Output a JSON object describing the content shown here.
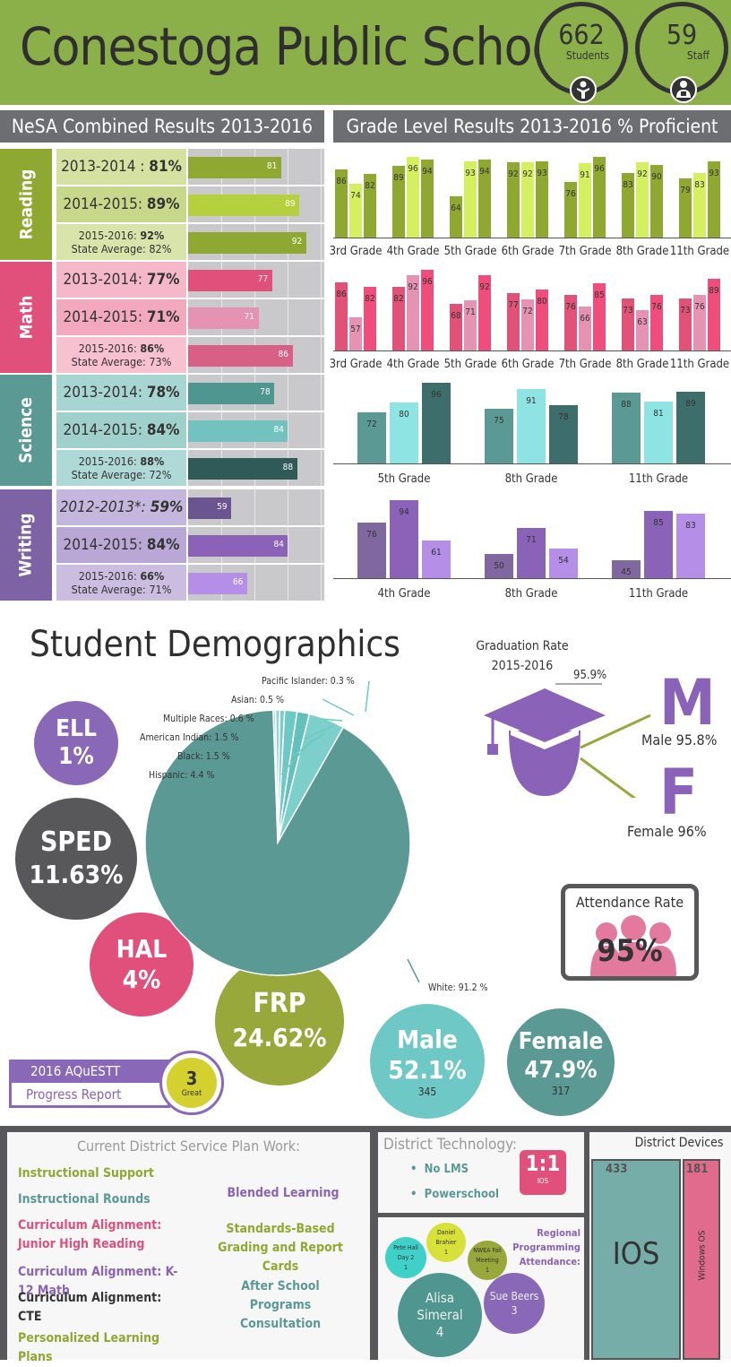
{
  "header": {
    "title": "Conestoga Public Schools",
    "students": {
      "value": "662",
      "label": "Students"
    },
    "staff": {
      "value": "59",
      "label": "Staff"
    }
  },
  "nesa": {
    "title": "NeSA Combined Results 2013-2016",
    "subjects": [
      {
        "name": "Reading",
        "rows": [
          {
            "label": "2013-2014 :",
            "pct": "81%",
            "value": 81,
            "italic": false
          },
          {
            "label": "2014-2015:",
            "pct": "89%",
            "value": 89,
            "italic": false
          },
          {
            "label": "2015-2016:",
            "pct": "92%",
            "state": "State Average: 82%",
            "value": 92,
            "italic": false
          }
        ]
      },
      {
        "name": "Math",
        "rows": [
          {
            "label": "2013-2014:",
            "pct": "77%",
            "value": 77,
            "italic": false
          },
          {
            "label": "2014-2015:",
            "pct": "71%",
            "value": 71,
            "italic": false
          },
          {
            "label": "2015-2016:",
            "pct": "86%",
            "state": "State Average: 73%",
            "value": 86,
            "italic": false
          }
        ]
      },
      {
        "name": "Science",
        "rows": [
          {
            "label": "2013-2014:",
            "pct": "78%",
            "value": 78,
            "italic": false
          },
          {
            "label": "2014-2015:",
            "pct": "84%",
            "value": 84,
            "italic": false
          },
          {
            "label": "2015-2016:",
            "pct": "88%",
            "state": "State Average: 72%",
            "value": 88,
            "italic": false
          }
        ]
      },
      {
        "name": "Writing",
        "rows": [
          {
            "label": "2012-2013*:",
            "pct": "59%",
            "value": 59,
            "italic": true
          },
          {
            "label": "2014-2015:",
            "pct": "84%",
            "value": 84,
            "italic": false
          },
          {
            "label": "2015-2016:",
            "pct": "66%",
            "state": "State Average: 71%",
            "value": 66,
            "italic": false
          }
        ]
      }
    ]
  },
  "grade": {
    "title": "Grade Level Results 2013-2016  % Proficient",
    "reading": {
      "grades": [
        "3rd Grade",
        "4th Grade",
        "5th Grade",
        "6th Grade",
        "7th Grade",
        "8th Grade",
        "11th Grade"
      ],
      "values": [
        [
          86,
          74,
          82
        ],
        [
          89,
          96,
          94
        ],
        [
          64,
          93,
          94
        ],
        [
          92,
          92,
          93
        ],
        [
          76,
          91,
          96
        ],
        [
          83,
          92,
          90
        ],
        [
          79,
          83,
          93
        ]
      ]
    },
    "math": {
      "grades": [
        "3rd Grade",
        "4th Grade",
        "5th Grade",
        "6th Grade",
        "7th Grade",
        "8th Grade",
        "11th Grade"
      ],
      "values": [
        [
          86,
          57,
          82
        ],
        [
          82,
          92,
          96
        ],
        [
          68,
          71,
          92
        ],
        [
          77,
          72,
          80
        ],
        [
          76,
          66,
          85
        ],
        [
          73,
          63,
          76
        ],
        [
          73,
          76,
          89
        ]
      ]
    },
    "science": {
      "grades": [
        "5th Grade",
        "8th Grade",
        "11th Grade"
      ],
      "values": [
        [
          72,
          80,
          96
        ],
        [
          75,
          91,
          78
        ],
        [
          88,
          81,
          89
        ]
      ]
    },
    "writing": {
      "grades": [
        "4th Grade",
        "8th Grade",
        "11th Grade"
      ],
      "values": [
        [
          76,
          94,
          61
        ],
        [
          50,
          71,
          54
        ],
        [
          45,
          85,
          83
        ]
      ]
    }
  },
  "colors": {
    "reading": [
      "#8fa832",
      "#d4f060",
      "#8fa832"
    ],
    "math": [
      "#e05277",
      "#e693b3",
      "#ef4e7c"
    ],
    "science": [
      "#5a9994",
      "#8ee4e2",
      "#3d6e6b"
    ],
    "writing": [
      "#80679f",
      "#8a62b8",
      "#b58ee8"
    ]
  },
  "demographics": {
    "title": "Student Demographics",
    "ell": {
      "label": "ELL",
      "value": "1%"
    },
    "sped": {
      "label": "SPED",
      "value": "11.63%"
    },
    "hal": {
      "label": "HAL",
      "value": "4%"
    },
    "frp": {
      "label": "FRP",
      "value": "24.62%"
    },
    "male": {
      "label": "Male",
      "value": "52.1%",
      "count": "345"
    },
    "female": {
      "label": "Female",
      "value": "47.9%",
      "count": "317"
    },
    "pie": [
      {
        "label": "Pacific Islander: 0.3 %",
        "value": 0.3
      },
      {
        "label": "Asian: 0.5 %",
        "value": 0.5
      },
      {
        "label": "Multiple Races: 0.6 %",
        "value": 0.6
      },
      {
        "label": "American Indian: 1.5 %",
        "value": 1.5
      },
      {
        "label": "Black: 1.5 %",
        "value": 1.5
      },
      {
        "label": "Hispanic: 4.4 %",
        "value": 4.4
      },
      {
        "label": "White: 91.2 %",
        "value": 91.2
      }
    ],
    "graduation": {
      "title": "Graduation Rate",
      "year": "2015-2016",
      "total": "95.9%",
      "m": "M",
      "male": "Male 95.8%",
      "f": "F",
      "female": "Female 96%"
    },
    "attendance": {
      "title": "Attendance Rate",
      "value": "95%"
    },
    "aquestt": {
      "year": "2016 AQuESTT",
      "report": "Progress Report",
      "score": "3",
      "rating": "Great"
    }
  },
  "service": {
    "title": "Current District Service Plan Work:",
    "left": [
      {
        "text": "Instructional Support",
        "color": "#8fa832"
      },
      {
        "text": "Instructional Rounds",
        "color": "#5a9994"
      },
      {
        "text": "Curriculum Alignment: Junior High Reading",
        "color": "#e0507a"
      },
      {
        "text": "Curriculum Alignment: K-12 Math",
        "color": "#8a62b8"
      },
      {
        "text": "Curriculum Alignment: CTE",
        "color": "#333333"
      },
      {
        "text": "Personalized Learning Plans",
        "color": "#8fa832"
      }
    ],
    "right": [
      {
        "text": "Blended Learning",
        "color": "#8a62b8"
      },
      {
        "text": "Standards-Based Grading and Report Cards",
        "color": "#8fa832"
      },
      {
        "text": "After School Programs Consultation",
        "color": "#5a9994"
      }
    ]
  },
  "tech": {
    "title": "District Technology:",
    "items": [
      "No LMS",
      "Powerschool"
    ],
    "ratio": "1:1",
    "ratio_sub": "IOS"
  },
  "regional": {
    "title": "Regional Programming Attendance:",
    "bubbles": [
      {
        "name": "Pete Hall Day 2",
        "count": "1"
      },
      {
        "name": "Daniel Brahier",
        "count": "1"
      },
      {
        "name": "NWEA Fall Meeting",
        "count": "1"
      },
      {
        "name": "Alisa Simeral",
        "count": "4"
      },
      {
        "name": "Sue Beers",
        "count": "3"
      }
    ]
  },
  "devices": {
    "title": "District Devices",
    "ios": {
      "label": "IOS",
      "count": "433"
    },
    "windows": {
      "label": "Windows OS",
      "count": "181"
    }
  }
}
